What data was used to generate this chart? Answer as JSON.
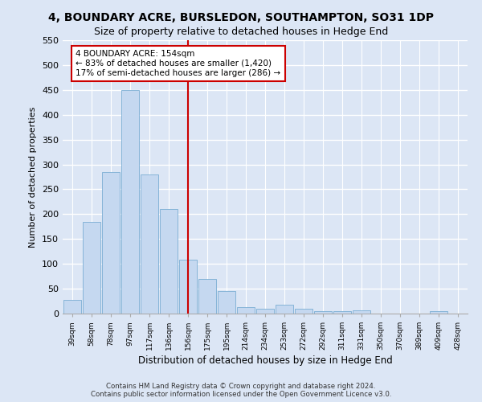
{
  "title": "4, BOUNDARY ACRE, BURSLEDON, SOUTHAMPTON, SO31 1DP",
  "subtitle": "Size of property relative to detached houses in Hedge End",
  "xlabel": "Distribution of detached houses by size in Hedge End",
  "ylabel": "Number of detached properties",
  "bar_color": "#c5d8f0",
  "bar_edge_color": "#7aadd4",
  "background_color": "#dce6f5",
  "fig_background": "#dce6f5",
  "grid_color": "#ffffff",
  "vline_color": "#cc0000",
  "annotation_text": "4 BOUNDARY ACRE: 154sqm\n← 83% of detached houses are smaller (1,420)\n17% of semi-detached houses are larger (286) →",
  "annotation_box_color": "#ffffff",
  "annotation_box_edge": "#cc0000",
  "categories": [
    "39sqm",
    "58sqm",
    "78sqm",
    "97sqm",
    "117sqm",
    "136sqm",
    "156sqm",
    "175sqm",
    "195sqm",
    "214sqm",
    "234sqm",
    "253sqm",
    "272sqm",
    "292sqm",
    "311sqm",
    "331sqm",
    "350sqm",
    "370sqm",
    "389sqm",
    "409sqm",
    "428sqm"
  ],
  "values": [
    28,
    185,
    285,
    450,
    280,
    210,
    108,
    70,
    45,
    13,
    10,
    18,
    10,
    5,
    5,
    6,
    0,
    0,
    0,
    5,
    0
  ],
  "ylim": [
    0,
    550
  ],
  "yticks": [
    0,
    50,
    100,
    150,
    200,
    250,
    300,
    350,
    400,
    450,
    500,
    550
  ],
  "vline_idx": 6,
  "footnote": "Contains HM Land Registry data © Crown copyright and database right 2024.\nContains public sector information licensed under the Open Government Licence v3.0."
}
